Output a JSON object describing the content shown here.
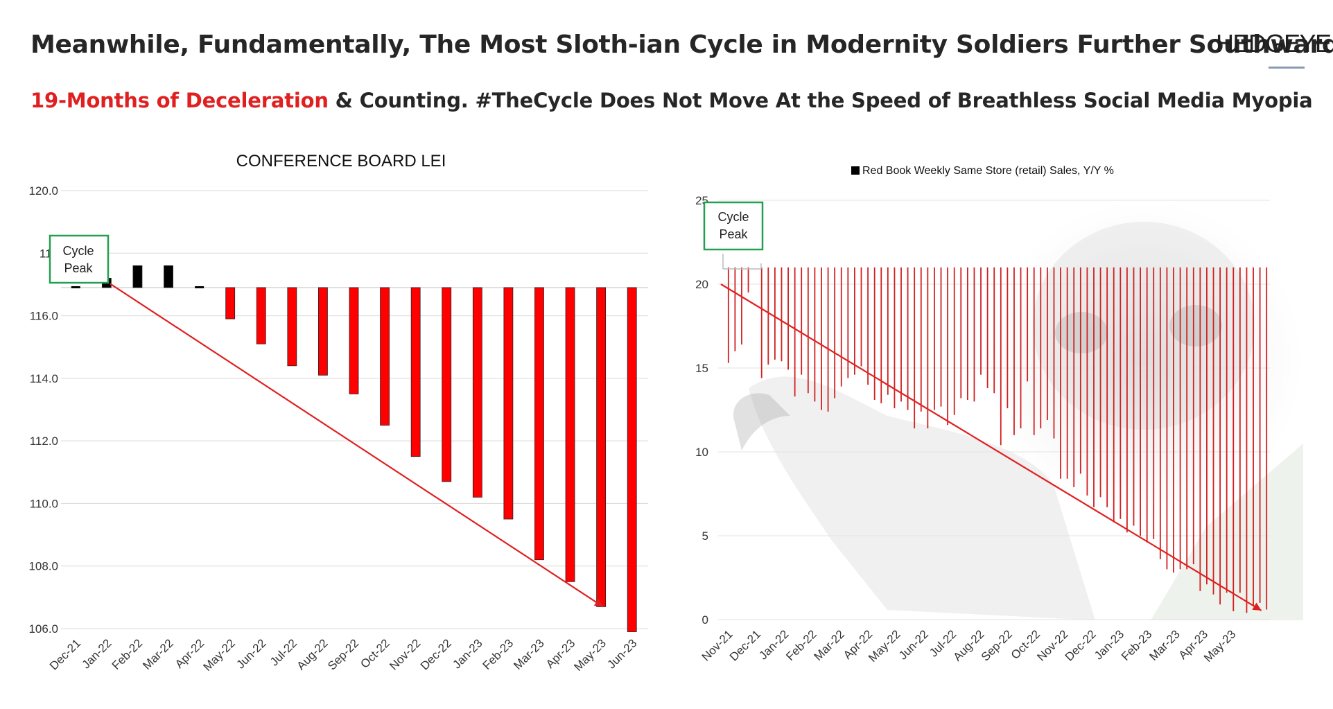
{
  "header": {
    "title": "Meanwhile, Fundamentally, The Most Sloth-ian Cycle in Modernity Soldiers Further Southward",
    "subtitle_highlight": "19-Months of Deceleration",
    "subtitle_rest": " & Counting.  #TheCycle Does Not Move At the Speed of Breathless Social Media Myopia",
    "logo": "HEDGEYE"
  },
  "colors": {
    "accent_red": "#e02020",
    "bar_red": "#ff0000",
    "bar_black": "#000000",
    "annot_green": "#22a050"
  },
  "chart_data": [
    {
      "type": "bar",
      "title": "CONFERENCE BOARD LEI",
      "categories": [
        "Dec-21",
        "Jan-22",
        "Feb-22",
        "Mar-22",
        "Apr-22",
        "May-22",
        "Jun-22",
        "Jul-22",
        "Aug-22",
        "Sep-22",
        "Oct-22",
        "Nov-22",
        "Dec-22",
        "Jan-23",
        "Feb-23",
        "Mar-23",
        "Apr-23",
        "May-23",
        "Jun-23"
      ],
      "values": [
        116.9,
        117.2,
        117.6,
        117.6,
        116.9,
        115.9,
        115.1,
        114.4,
        114.1,
        113.5,
        112.5,
        111.5,
        110.7,
        110.2,
        109.5,
        108.2,
        107.5,
        106.7,
        105.9
      ],
      "baseline": 116.9,
      "yticks": [
        "106.0",
        "108.0",
        "110.0",
        "112.0",
        "114.0",
        "116.0",
        "118",
        "120.0"
      ],
      "ylim": [
        106,
        120
      ],
      "annotation": {
        "text_line1": "Cycle",
        "text_line2": "Peak"
      },
      "trend_arrow": {
        "from": [
          "Jan-22",
          117.2
        ],
        "to": [
          "May-23",
          106.7
        ]
      }
    },
    {
      "type": "bar",
      "legend": "Red Book Weekly Same Store (retail) Sales, Y/Y %",
      "x_tick_labels": [
        "Nov-21",
        "Dec-21",
        "Jan-22",
        "Feb-22",
        "Mar-22",
        "Apr-22",
        "May-22",
        "Jun-22",
        "Jul-22",
        "Aug-22",
        "Sep-22",
        "Oct-22",
        "Nov-22",
        "Dec-22",
        "Jan-23",
        "Feb-23",
        "Mar-23",
        "Apr-23",
        "May-23"
      ],
      "yticks": [
        "0",
        "5",
        "10",
        "15",
        "20",
        "25"
      ],
      "ylim": [
        0,
        25
      ],
      "baseline": 21,
      "weekly_values": [
        15.3,
        16.0,
        16.4,
        19.5,
        21.0,
        14.4,
        15.2,
        15.5,
        15.4,
        14.9,
        13.3,
        14.6,
        13.5,
        13.0,
        12.5,
        12.4,
        13.2,
        13.9,
        14.4,
        14.6,
        15.1,
        14.0,
        13.1,
        12.9,
        13.4,
        12.6,
        13.0,
        12.5,
        11.4,
        12.4,
        11.4,
        12.5,
        12.7,
        11.6,
        12.2,
        13.2,
        13.1,
        13.0,
        14.6,
        13.8,
        13.5,
        10.4,
        12.6,
        11.0,
        11.4,
        14.2,
        11.0,
        11.4,
        11.9,
        10.8,
        8.4,
        8.4,
        7.9,
        8.7,
        7.4,
        6.7,
        7.3,
        6.7,
        5.8,
        6.0,
        5.2,
        5.6,
        5.0,
        4.6,
        4.8,
        3.6,
        3.0,
        2.8,
        3.0,
        3.0,
        3.3,
        1.7,
        2.1,
        1.5,
        0.9,
        1.6,
        0.5,
        1.6,
        0.4,
        0.8,
        1.0,
        0.6
      ],
      "annotation": {
        "text_line1": "Cycle",
        "text_line2": "Peak"
      },
      "trend_arrow": {
        "from": [
          "Nov-21",
          20.0
        ],
        "to": [
          "May-23",
          0.5
        ]
      }
    }
  ]
}
